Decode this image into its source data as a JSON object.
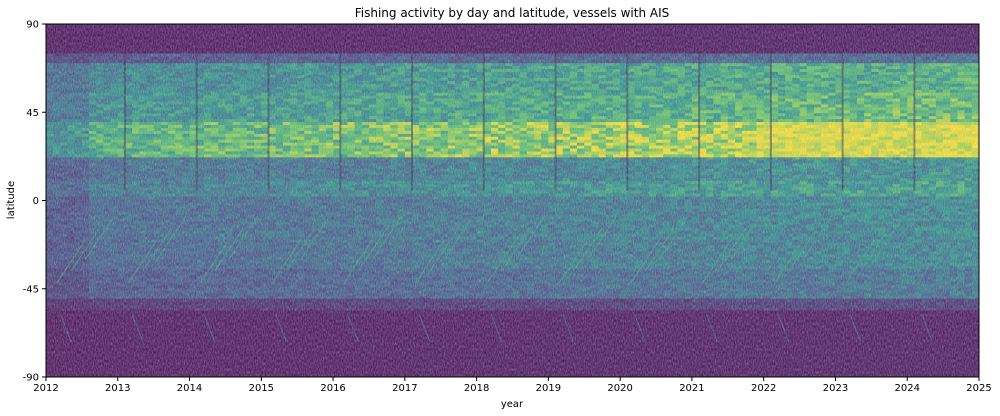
{
  "chart_data": {
    "type": "heatmap",
    "title": "Fishing activity by day and latitude, vessels with AIS",
    "xlabel": "year",
    "ylabel": "latitude",
    "xlim": [
      2012,
      2025
    ],
    "ylim": [
      -90,
      90
    ],
    "x_ticks": [
      2012,
      2013,
      2014,
      2015,
      2016,
      2017,
      2018,
      2019,
      2020,
      2021,
      2022,
      2023,
      2024,
      2025
    ],
    "y_ticks": [
      90,
      45,
      0,
      -45,
      -90
    ],
    "colormap": [
      "#440154",
      "#3b528b",
      "#21918c",
      "#5ec962",
      "#fde725"
    ],
    "background_color": "#1a0b2e",
    "bands": [
      {
        "lat_from": 75,
        "lat_to": 90,
        "intensity": 0.02
      },
      {
        "lat_from": 70,
        "lat_to": 75,
        "intensity": 0.25
      },
      {
        "lat_from": 55,
        "lat_to": 70,
        "intensity": 0.55
      },
      {
        "lat_from": 40,
        "lat_to": 55,
        "intensity": 0.62
      },
      {
        "lat_from": 22,
        "lat_to": 40,
        "intensity": 0.85
      },
      {
        "lat_from": 10,
        "lat_to": 22,
        "intensity": 0.42
      },
      {
        "lat_from": 2,
        "lat_to": 10,
        "intensity": 0.48
      },
      {
        "lat_from": -20,
        "lat_to": 2,
        "intensity": 0.38
      },
      {
        "lat_from": -35,
        "lat_to": -20,
        "intensity": 0.36
      },
      {
        "lat_from": -50,
        "lat_to": -35,
        "intensity": 0.3
      },
      {
        "lat_from": -56,
        "lat_to": -50,
        "intensity": 0.12
      },
      {
        "lat_from": -90,
        "lat_to": -56,
        "intensity": 0.02
      }
    ],
    "trend": "activity increases over time; strongest at 22 to 40 latitude from 2022 onward"
  }
}
